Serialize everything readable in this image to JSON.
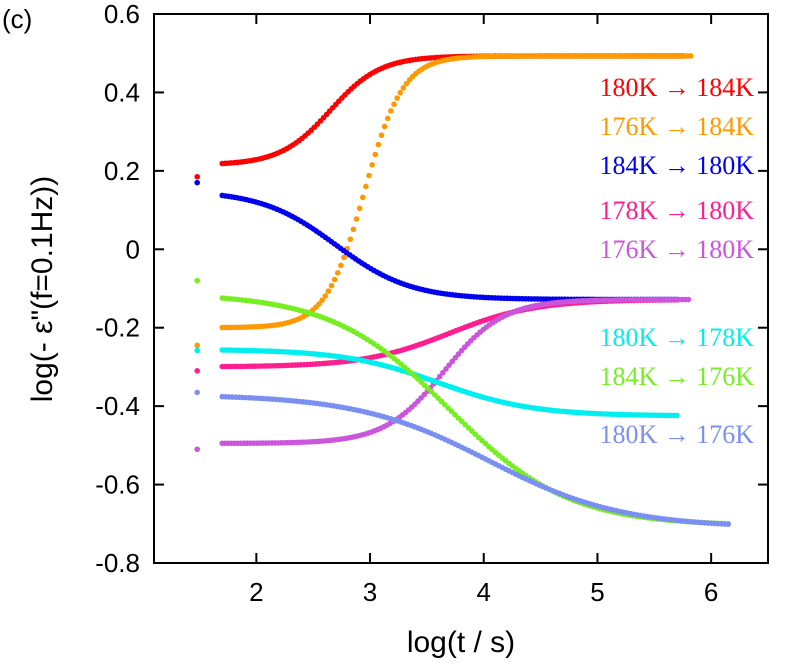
{
  "panel_label": "(c)",
  "chart_data": {
    "type": "scatter",
    "title": "",
    "xlabel": "log(t / s)",
    "ylabel": "log(- ε\"(f=0.1Hz))",
    "xlim": [
      1.1,
      6.5
    ],
    "ylim": [
      -0.8,
      0.6
    ],
    "xticks": [
      2,
      3,
      4,
      5,
      6
    ],
    "yticks": [
      -0.8,
      -0.6,
      -0.4,
      -0.2,
      0,
      0.2,
      0.4,
      0.6
    ],
    "xtick_labels": [
      "2",
      "3",
      "4",
      "5",
      "6"
    ],
    "ytick_labels": [
      "-0.8",
      "-0.6",
      "-0.4",
      "-0.2",
      "0",
      "0.2",
      "0.4",
      "0.6"
    ],
    "grid": false,
    "legend_position": "right",
    "series": [
      {
        "name": "180K → 184K",
        "color": "#ff0000",
        "first": [
          1.48,
          0.185
        ],
        "x_end": 5.75,
        "start": 0.215,
        "end": 0.493,
        "mid": 2.65,
        "width": 0.22
      },
      {
        "name": "176K → 184K",
        "color": "#ff9900",
        "first": [
          1.48,
          -0.245
        ],
        "x_end": 5.82,
        "start": -0.2,
        "end": 0.493,
        "mid": 2.95,
        "width": 0.17
      },
      {
        "name": "184K → 180K",
        "color": "#0000ee",
        "first": [
          1.48,
          0.17
        ],
        "x_end": 5.7,
        "start": 0.15,
        "end": -0.128,
        "mid": 2.7,
        "width": 0.33
      },
      {
        "name": "178K → 180K",
        "color": "#ff1e90",
        "first": [
          1.48,
          -0.31
        ],
        "x_end": 5.7,
        "start": -0.3,
        "end": -0.128,
        "mid": 3.7,
        "width": 0.38
      },
      {
        "name": "176K → 180K",
        "color": "#cc55dd",
        "first": [
          1.48,
          -0.51
        ],
        "x_end": 5.8,
        "start": -0.495,
        "end": -0.128,
        "mid": 3.65,
        "width": 0.26
      },
      {
        "name": "180K → 178K",
        "color": "#00eeee",
        "first": [
          1.48,
          -0.258
        ],
        "x_end": 5.7,
        "start": -0.255,
        "end": -0.425,
        "mid": 3.6,
        "width": 0.42
      },
      {
        "name": "184K → 176K",
        "color": "#77ee22",
        "first": [
          1.48,
          -0.08
        ],
        "x_end": 6.15,
        "start": -0.112,
        "end": -0.705,
        "mid": 3.7,
        "width": 0.52
      },
      {
        "name": "180K → 176K",
        "color": "#7b8ff0",
        "first": [
          1.48,
          -0.365
        ],
        "x_end": 6.15,
        "start": -0.37,
        "end": -0.71,
        "mid": 4.05,
        "width": 0.58
      }
    ]
  }
}
